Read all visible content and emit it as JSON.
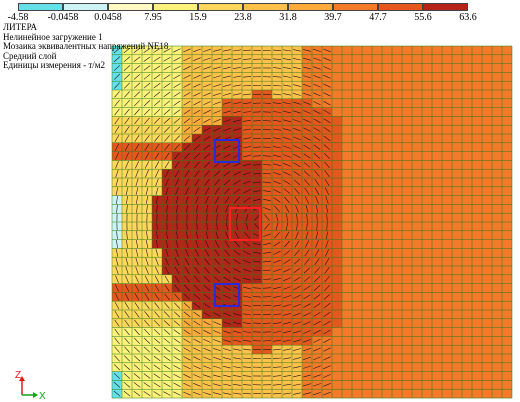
{
  "legend": {
    "ticks": [
      "-4.58",
      "-0.0458",
      "0.0458",
      "7.95",
      "15.9",
      "23.8",
      "31.8",
      "39.7",
      "47.7",
      "55.6",
      "63.6"
    ],
    "colors": [
      "#66e0e8",
      "#ccf4f4",
      "#fff9c4",
      "#fff27a",
      "#ffd75a",
      "#ffc14a",
      "#ffab3c",
      "#f47a2a",
      "#e6571e",
      "#b52418"
    ]
  },
  "info": {
    "line1": "ЛИТЕРА",
    "line2": "Нелинейное загружение 1",
    "line3": "Мозаика эквивалентных напряжений NE18",
    "line4": "Средний слой",
    "line5": "Единицы измерения - т/м2"
  },
  "axes": {
    "z_label": "Z",
    "x_label": "X"
  },
  "colors": {
    "mesh_line": "#2a7a1a",
    "highlight_blue": "#2a2ad8",
    "highlight_red": "#ff2020",
    "background": "#ffffff"
  }
}
